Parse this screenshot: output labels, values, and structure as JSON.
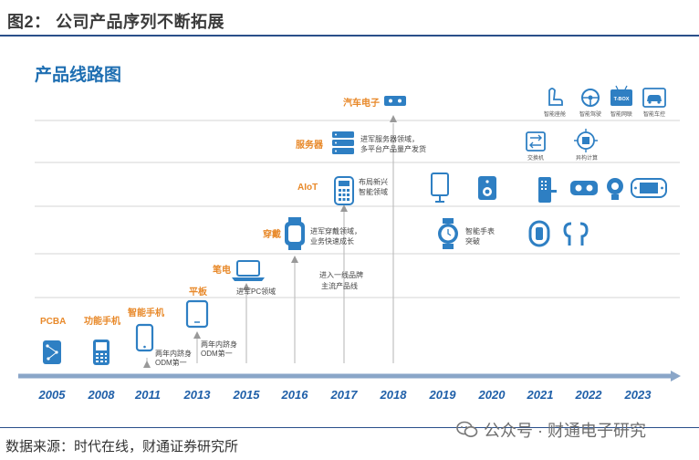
{
  "figure_title": "图2：   公司产品序列不断拓展",
  "diagram_title": "产品线路图",
  "source": "数据来源：时代在线，财通证券研究所",
  "watermark": "公众号 · 财通电子研究",
  "colors": {
    "accent_orange": "#e8892a",
    "timeline_blue": "#1f5fa8",
    "icon_blue": "#2e7fc3",
    "grey_line": "#c8c8c8",
    "title_blue": "#1f6fb2"
  },
  "years": [
    "2005",
    "2008",
    "2011",
    "2013",
    "2015",
    "2016",
    "2017",
    "2018",
    "2019",
    "2020",
    "2021",
    "2022",
    "2023"
  ],
  "categories": {
    "pcba": "PCBA",
    "feature_phone": "功能手机",
    "smartphone": "智能手机",
    "tablet": "平板",
    "notebook": "笔电",
    "wearable": "穿戴",
    "aiot": "AIoT",
    "server": "服务器",
    "auto": "汽车电子"
  },
  "notes": {
    "odm_2011": "两年内跻身\nODM第一",
    "odm_2013": "两年内跻身\nODM第一",
    "pc_2015": "进军PC领域",
    "brand_2017": "进入一线品牌\n主流产品线",
    "wear_2016": "进军穿戴领域，\n业务快速成长",
    "aiot_2017": "布局新兴\n智能领域",
    "server_2017": "进军服务器领域，\n多平台产品量产发货",
    "smartwatch": "智能手表\n突破"
  },
  "small_labels": {
    "switch": "交换机",
    "edge": "异构计算",
    "car_seat": "智能座舱",
    "drive": "智能驾驶",
    "tbox_label": "智能网联",
    "body": "智能车控",
    "tbox_text": "T-BOX"
  }
}
